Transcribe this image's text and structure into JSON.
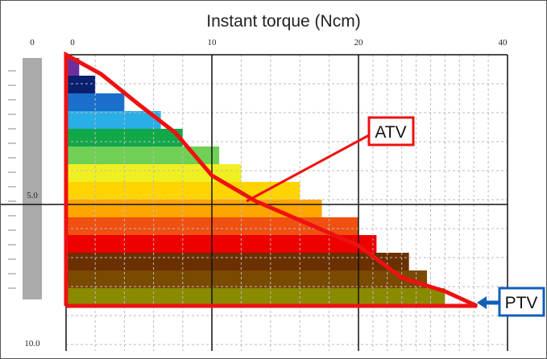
{
  "chart_data": {
    "type": "area",
    "title": "Instant torque (Ncm)",
    "x_ticks": [
      "0",
      "10",
      "20",
      "40"
    ],
    "depth_ticks": [
      "0",
      "5.0",
      "10.0"
    ],
    "callouts": {
      "atv": "ATV",
      "ptv": "PTV"
    },
    "colors": {
      "outline": "#ee1111",
      "ptv_box": "#1060b8",
      "depth_bar": "#aaaaaa"
    },
    "bands": [
      {
        "color": "#6b2fa0",
        "torque": 0.9
      },
      {
        "color": "#0a1f6e",
        "torque": 2.0
      },
      {
        "color": "#1a6fcc",
        "torque": 4.0
      },
      {
        "color": "#29aee6",
        "torque": 6.5
      },
      {
        "color": "#11a84a",
        "torque": 8.0
      },
      {
        "color": "#6fd055",
        "torque": 10.5
      },
      {
        "color": "#f0f020",
        "torque": 12.0
      },
      {
        "color": "#ffd400",
        "torque": 16.0
      },
      {
        "color": "#ffa500",
        "torque": 17.5
      },
      {
        "color": "#f05010",
        "torque": 20.0
      },
      {
        "color": "#ee0000",
        "torque": 22.5
      },
      {
        "color": "#6a3000",
        "torque": 27.0
      },
      {
        "color": "#7a4a00",
        "torque": 29.5
      },
      {
        "color": "#8a8a00",
        "torque": 32.0
      }
    ]
  }
}
